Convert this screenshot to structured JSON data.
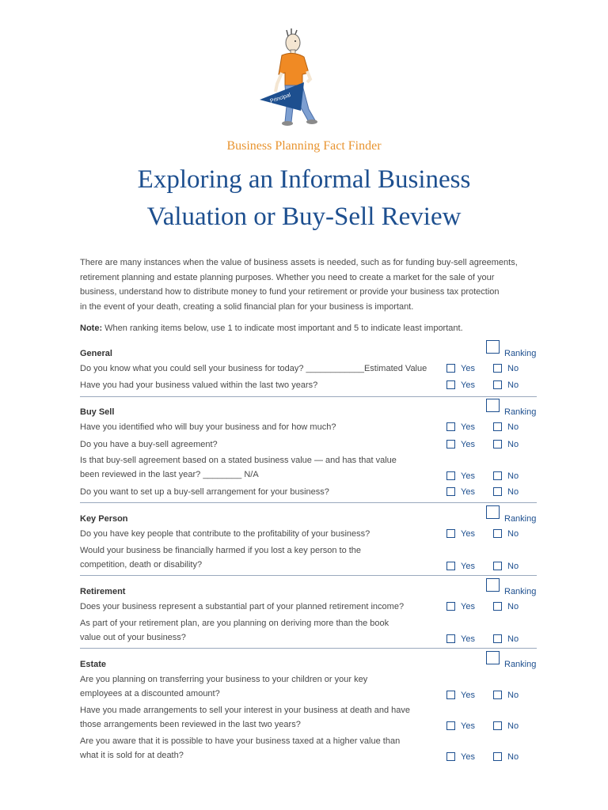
{
  "header": {
    "logo_text": "Principal",
    "subtitle": "Business Planning Fact Finder",
    "title_line1": "Exploring an Informal Business",
    "title_line2": "Valuation or Buy-Sell Review"
  },
  "intro": {
    "lines": [
      "There are many instances when the value of business assets is needed, such as for funding buy-sell agreements,",
      "retirement planning and estate planning purposes. Whether you need to create a market for the sale of your",
      "business, understand how to distribute money to fund your retirement or provide your business tax protection",
      "in the event of your death, creating a solid financial plan for your business is important."
    ]
  },
  "note": {
    "label": "Note:",
    "text": " When ranking items below, use 1 to indicate most important and 5 to indicate least important."
  },
  "labels": {
    "yes": "Yes",
    "no": "No",
    "ranking": "Ranking"
  },
  "colors": {
    "title_blue": "#1d4f8f",
    "subtitle_orange": "#e89430",
    "body_text": "#4a4a4a"
  },
  "sections": [
    {
      "title": "General",
      "questions": [
        {
          "lines": [
            "Do you know what you could sell your business for today? ____________Estimated Value"
          ]
        },
        {
          "lines": [
            "Have you had your business valued within the last two years?"
          ]
        }
      ]
    },
    {
      "title": "Buy Sell",
      "questions": [
        {
          "lines": [
            "Have you identified who will buy your business and for how much?"
          ]
        },
        {
          "lines": [
            "Do you have a buy-sell agreement?"
          ]
        },
        {
          "lines": [
            "Is that buy-sell agreement based on a stated business value — and has that value",
            "been reviewed in the last year? ________ N/A"
          ]
        },
        {
          "lines": [
            "Do you want to set up a buy-sell arrangement for your business?"
          ]
        }
      ]
    },
    {
      "title": "Key Person",
      "questions": [
        {
          "lines": [
            "Do you have key people that contribute to the profitability of your business?"
          ]
        },
        {
          "lines": [
            "Would your business be financially harmed if you lost a key person to the",
            "competition, death or disability?"
          ]
        }
      ]
    },
    {
      "title": "Retirement",
      "questions": [
        {
          "lines": [
            "Does your business represent a substantial part of your planned retirement income?"
          ]
        },
        {
          "lines": [
            "As part of your retirement plan, are you planning on deriving more than the book",
            "value out of your business?"
          ]
        }
      ]
    },
    {
      "title": "Estate",
      "questions": [
        {
          "lines": [
            "Are you planning on transferring your business to your children or your key",
            "employees at a discounted amount?"
          ]
        },
        {
          "lines": [
            "Have you made arrangements to sell your interest in your business at death and have",
            "those arrangements been reviewed in the last two years?"
          ]
        },
        {
          "lines": [
            "Are you aware that it is possible to have your business taxed at a higher value than",
            "what it is sold for at death?"
          ]
        }
      ]
    }
  ]
}
